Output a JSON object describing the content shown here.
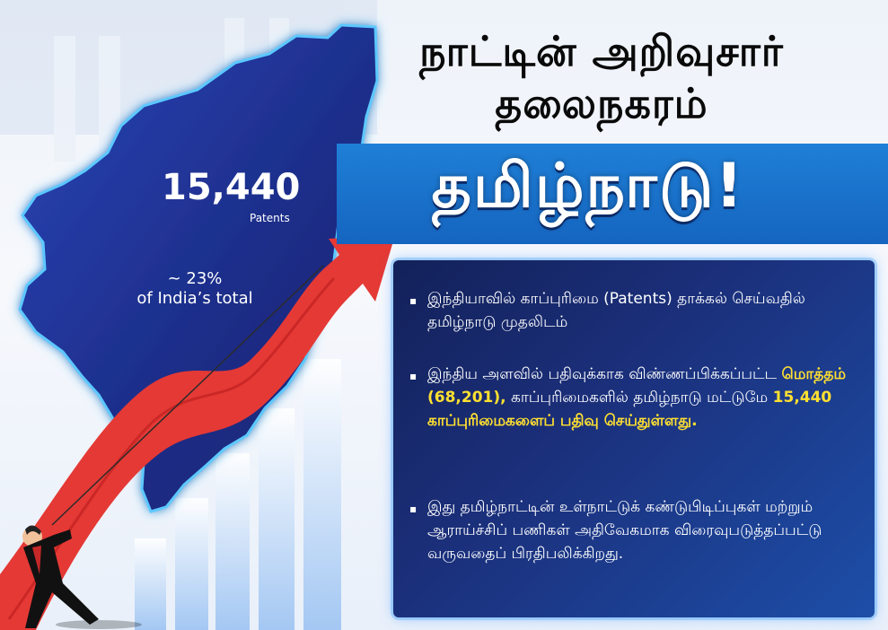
{
  "header": {
    "title_line_1": "நாட்டின் அறிவுசார்",
    "title_line_2": "தலைநகரம்",
    "banner_title": "தமிழ்நாடு!"
  },
  "map": {
    "patents_count": "15,440",
    "patents_label": "Patents",
    "share_line_1": "~ 23%",
    "share_line_2": "of India’s total"
  },
  "points": [
    {
      "text": "இந்தியாவில் காப்புரிமை (Patents) தாக்கல் செய்வதில் தமிழ்நாடு முதலிடம்"
    },
    {
      "text_a": "இந்திய அளவில் பதிவுக்காக விண்ணப்பிக்கப்பட்ட ",
      "highlight_a": "மொத்தம் (68,201),",
      "text_b": " காப்புரிமைகளில் தமிழ்நாடு மட்டுமே ",
      "highlight_b": "15,440 காப்புரிமைகளைப் பதிவு செய்துள்ளது."
    },
    {
      "text": "இது தமிழ்நாட்டின் உள்நாட்டுக் கண்டுபிடிப்புகள் மற்றும் ஆராய்ச்சிப் பணிகள் அதிவேகமாக விரைவுபடுத்தப்பட்டு வருவதைப் பிரதிபலிக்கிறது."
    }
  ],
  "bullet_icon": "square-bullet-icon",
  "colors": {
    "map_fill": "#1d2e8a",
    "band_blue": "#1565c0",
    "arrow_red": "#e53935",
    "highlight_yellow": "#ffe030",
    "panel_navy": "#13215a"
  }
}
